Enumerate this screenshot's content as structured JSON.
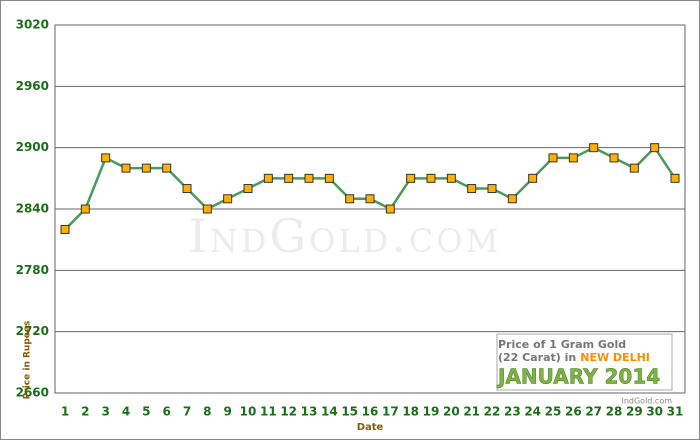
{
  "chart_data": {
    "type": "line",
    "title_lines": [
      "Price of 1 Gram Gold",
      "(22 Carat) in",
      "NEW DELHI"
    ],
    "subtitle": "JANUARY 2014",
    "source": "IndGold.com",
    "watermark": "IndGold.com",
    "x_label": "Date",
    "y_label": "Price in Rupees",
    "categories": [
      "1",
      "2",
      "3",
      "4",
      "5",
      "6",
      "7",
      "8",
      "9",
      "10",
      "11",
      "12",
      "13",
      "14",
      "15",
      "16",
      "17",
      "18",
      "19",
      "20",
      "21",
      "22",
      "23",
      "24",
      "25",
      "26",
      "27",
      "28",
      "29",
      "30",
      "31"
    ],
    "series": [
      {
        "color": "#4a9a5a",
        "marker_color": "#ffb000",
        "values": [
          2820,
          2840,
          2890,
          2880,
          2880,
          2880,
          2860,
          2840,
          2850,
          2860,
          2870,
          2870,
          2870,
          2870,
          2850,
          2850,
          2840,
          2870,
          2870,
          2870,
          2860,
          2860,
          2850,
          2870,
          2890,
          2890,
          2900,
          2890,
          2880,
          2900,
          2870
        ]
      }
    ],
    "ylim": [
      2660,
      3020
    ],
    "yticks": [
      2660,
      2720,
      2780,
      2840,
      2900,
      2960,
      3020
    ],
    "grid": true
  }
}
